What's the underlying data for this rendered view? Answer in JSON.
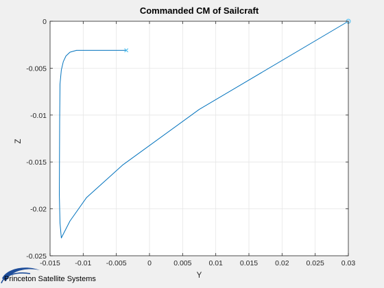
{
  "chart_data": {
    "type": "line",
    "title": "Commanded CM of Sailcraft",
    "xlabel": "Y",
    "ylabel": "Z",
    "xlim": [
      -0.015,
      0.03
    ],
    "ylim": [
      -0.025,
      0
    ],
    "xticks": [
      -0.015,
      -0.01,
      -0.005,
      0,
      0.005,
      0.01,
      0.015,
      0.02,
      0.025,
      0.03
    ],
    "xtick_labels": [
      "-0.015",
      "-0.01",
      "-0.005",
      "0",
      "0.005",
      "0.01",
      "0.015",
      "0.02",
      "0.025",
      "0.03"
    ],
    "yticks": [
      0,
      -0.005,
      -0.01,
      -0.015,
      -0.02,
      -0.025
    ],
    "ytick_labels": [
      "0",
      "-0.005",
      "-0.01",
      "-0.015",
      "-0.02",
      "-0.025"
    ],
    "grid": true,
    "series": [
      {
        "color": "#0072bd",
        "x": [
          0.03,
          0.0075,
          -0.004,
          -0.0095,
          -0.012,
          -0.0133,
          -0.0135,
          -0.0136,
          -0.01355,
          -0.0135,
          -0.0133,
          -0.013,
          -0.0126,
          -0.012,
          -0.011,
          -0.009,
          -0.007,
          -0.005,
          -0.0035
        ],
        "y": [
          0,
          -0.0094,
          -0.0153,
          -0.0188,
          -0.0213,
          -0.0231,
          -0.0215,
          -0.0185,
          -0.0105,
          -0.0067,
          -0.0052,
          -0.0043,
          -0.0037,
          -0.0033,
          -0.0031,
          -0.0031,
          -0.0031,
          -0.0031,
          -0.0031
        ]
      }
    ],
    "start_marker": {
      "shape": "circle",
      "x": 0.03,
      "y": 0
    },
    "end_marker": {
      "shape": "x",
      "x": -0.0035,
      "y": -0.0031
    }
  },
  "logo": {
    "text": "Princeton Satellite Systems"
  },
  "colors": {
    "figure_background": "#f0f0f0",
    "axes_background": "#ffffff",
    "line": "#0072bd",
    "marker": "#4dbeee",
    "grid": "#e5e5e5",
    "logo_blue": "#1f4e9a"
  }
}
